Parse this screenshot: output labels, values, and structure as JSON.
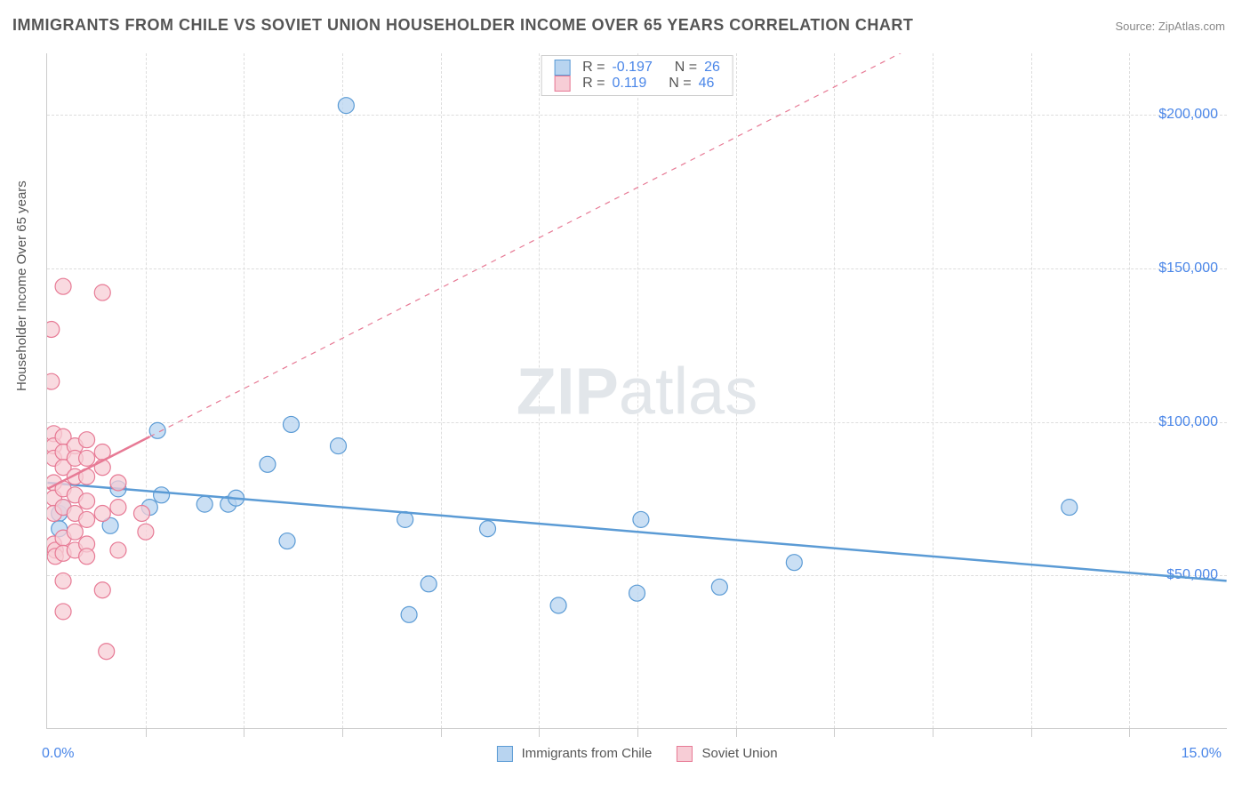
{
  "title": "IMMIGRANTS FROM CHILE VS SOVIET UNION HOUSEHOLDER INCOME OVER 65 YEARS CORRELATION CHART",
  "source_label": "Source: ZipAtlas.com",
  "ylabel": "Householder Income Over 65 years",
  "watermark_a": "ZIP",
  "watermark_b": "atlas",
  "chart": {
    "type": "scatter",
    "background_color": "#ffffff",
    "grid_color": "#dddddd",
    "axis_color": "#cccccc",
    "tick_label_color": "#4a86e8",
    "xlim": [
      0,
      15
    ],
    "ylim": [
      0,
      220000
    ],
    "ytick_values": [
      50000,
      100000,
      150000,
      200000
    ],
    "ytick_labels": [
      "$50,000",
      "$100,000",
      "$150,000",
      "$200,000"
    ],
    "xtick_values": [
      0,
      1.25,
      2.5,
      3.75,
      5,
      6.25,
      7.5,
      8.75,
      10,
      11.25,
      12.5,
      13.75,
      15
    ],
    "xtick_labels_shown": {
      "0": "0.0%",
      "15": "15.0%"
    },
    "marker_radius": 9,
    "marker_stroke_width": 1.2,
    "trend_line_width": 2.5,
    "trend_dash_width": 1.2,
    "series": [
      {
        "key": "chile",
        "label": "Immigrants from Chile",
        "fill_color": "#b8d4f0",
        "stroke_color": "#5b9bd5",
        "r_value": "-0.197",
        "n_value": "26",
        "trend": {
          "x1": 0,
          "y1": 80000,
          "x2": 15,
          "y2": 48000
        },
        "trend_dash": null,
        "points": [
          {
            "x": 0.15,
            "y": 70000
          },
          {
            "x": 0.15,
            "y": 65000
          },
          {
            "x": 0.2,
            "y": 72000
          },
          {
            "x": 0.8,
            "y": 66000
          },
          {
            "x": 0.9,
            "y": 78000
          },
          {
            "x": 1.3,
            "y": 72000
          },
          {
            "x": 1.4,
            "y": 97000
          },
          {
            "x": 1.45,
            "y": 76000
          },
          {
            "x": 2.0,
            "y": 73000
          },
          {
            "x": 2.3,
            "y": 73000
          },
          {
            "x": 2.4,
            "y": 75000
          },
          {
            "x": 2.8,
            "y": 86000
          },
          {
            "x": 3.05,
            "y": 61000
          },
          {
            "x": 3.1,
            "y": 99000
          },
          {
            "x": 3.7,
            "y": 92000
          },
          {
            "x": 3.8,
            "y": 203000
          },
          {
            "x": 4.55,
            "y": 68000
          },
          {
            "x": 4.6,
            "y": 37000
          },
          {
            "x": 4.85,
            "y": 47000
          },
          {
            "x": 5.6,
            "y": 65000
          },
          {
            "x": 6.5,
            "y": 40000
          },
          {
            "x": 7.5,
            "y": 44000
          },
          {
            "x": 7.55,
            "y": 68000
          },
          {
            "x": 8.55,
            "y": 46000
          },
          {
            "x": 9.5,
            "y": 54000
          },
          {
            "x": 13.0,
            "y": 72000
          }
        ]
      },
      {
        "key": "soviet",
        "label": "Soviet Union",
        "fill_color": "#f7cdd6",
        "stroke_color": "#e77a95",
        "r_value": "0.119",
        "n_value": "46",
        "trend": {
          "x1": 0,
          "y1": 78000,
          "x2": 1.3,
          "y2": 95000
        },
        "trend_dash": {
          "x1": 1.3,
          "y1": 95000,
          "x2": 11.0,
          "y2": 222000
        },
        "points": [
          {
            "x": 0.05,
            "y": 130000
          },
          {
            "x": 0.05,
            "y": 113000
          },
          {
            "x": 0.08,
            "y": 96000
          },
          {
            "x": 0.08,
            "y": 92000
          },
          {
            "x": 0.08,
            "y": 88000
          },
          {
            "x": 0.08,
            "y": 80000
          },
          {
            "x": 0.08,
            "y": 75000
          },
          {
            "x": 0.08,
            "y": 70000
          },
          {
            "x": 0.08,
            "y": 60000
          },
          {
            "x": 0.1,
            "y": 58000
          },
          {
            "x": 0.1,
            "y": 56000
          },
          {
            "x": 0.2,
            "y": 144000
          },
          {
            "x": 0.2,
            "y": 95000
          },
          {
            "x": 0.2,
            "y": 90000
          },
          {
            "x": 0.2,
            "y": 85000
          },
          {
            "x": 0.2,
            "y": 78000
          },
          {
            "x": 0.2,
            "y": 72000
          },
          {
            "x": 0.2,
            "y": 62000
          },
          {
            "x": 0.2,
            "y": 57000
          },
          {
            "x": 0.2,
            "y": 48000
          },
          {
            "x": 0.2,
            "y": 38000
          },
          {
            "x": 0.35,
            "y": 92000
          },
          {
            "x": 0.35,
            "y": 88000
          },
          {
            "x": 0.35,
            "y": 82000
          },
          {
            "x": 0.35,
            "y": 76000
          },
          {
            "x": 0.35,
            "y": 70000
          },
          {
            "x": 0.35,
            "y": 64000
          },
          {
            "x": 0.35,
            "y": 58000
          },
          {
            "x": 0.5,
            "y": 94000
          },
          {
            "x": 0.5,
            "y": 88000
          },
          {
            "x": 0.5,
            "y": 82000
          },
          {
            "x": 0.5,
            "y": 74000
          },
          {
            "x": 0.5,
            "y": 68000
          },
          {
            "x": 0.5,
            "y": 60000
          },
          {
            "x": 0.5,
            "y": 56000
          },
          {
            "x": 0.7,
            "y": 142000
          },
          {
            "x": 0.7,
            "y": 90000
          },
          {
            "x": 0.7,
            "y": 85000
          },
          {
            "x": 0.7,
            "y": 70000
          },
          {
            "x": 0.7,
            "y": 45000
          },
          {
            "x": 0.75,
            "y": 25000
          },
          {
            "x": 0.9,
            "y": 80000
          },
          {
            "x": 0.9,
            "y": 72000
          },
          {
            "x": 0.9,
            "y": 58000
          },
          {
            "x": 1.2,
            "y": 70000
          },
          {
            "x": 1.25,
            "y": 64000
          }
        ]
      }
    ]
  },
  "legend_top": {
    "r_label": "R =",
    "n_label": "N ="
  }
}
